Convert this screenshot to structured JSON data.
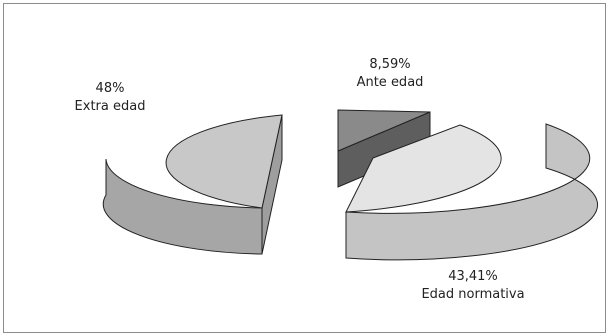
{
  "chart_data": {
    "type": "pie",
    "style": "3d-exploded",
    "title": "",
    "slices": [
      {
        "label": "Extra edad",
        "value_text": "48%",
        "value": 48.0,
        "top_color": "#c8c8c8",
        "side_color": "#a6a6a6",
        "cut_color": "#9e9e9e"
      },
      {
        "label": "Ante edad",
        "value_text": "8,59%",
        "value": 8.59,
        "top_color": "#8a8a8a",
        "side_color": "#6f6f6f",
        "cut_color": "#5e5e5e"
      },
      {
        "label": "Edad normativa",
        "value_text": "43,41%",
        "value": 43.41,
        "top_color": "#e4e4e4",
        "side_color": "#c4c4c4",
        "cut_color": "#bdbdbd"
      }
    ],
    "legend": "none"
  }
}
